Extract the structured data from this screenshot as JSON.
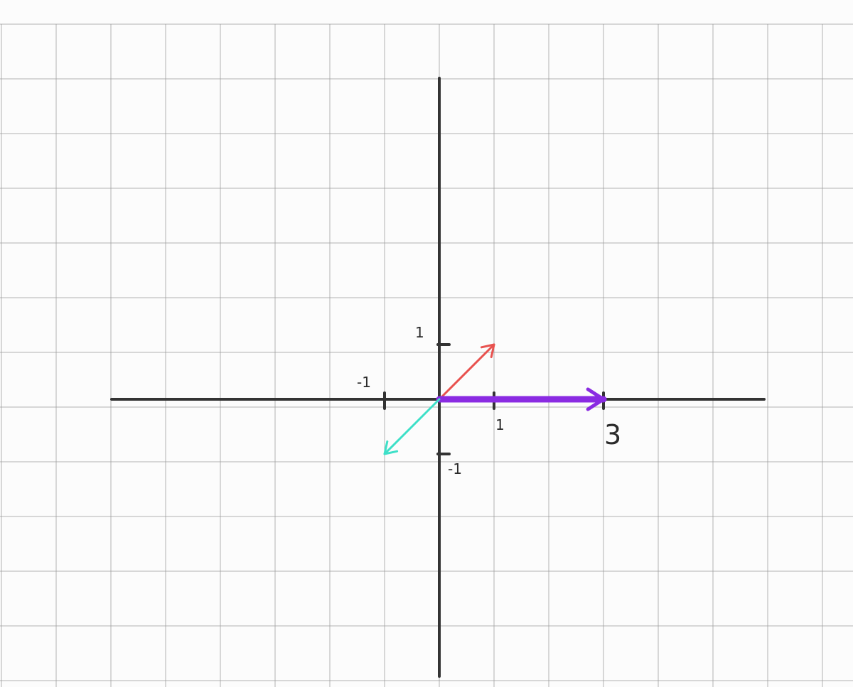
{
  "diagram": {
    "x_range": [
      -6,
      6
    ],
    "y_range": [
      -5,
      6
    ],
    "grid": true,
    "colors": {
      "background": "#fcfcfc",
      "grid": "#9a9a9a",
      "axis": "#333333",
      "vector_red": "#e8524f",
      "vector_purple": "#8a2be2",
      "vector_teal": "#3ee0c8"
    },
    "vectors": [
      {
        "id": "red",
        "from": [
          0,
          0
        ],
        "to": [
          1,
          1
        ],
        "color_key": "vector_red"
      },
      {
        "id": "purple",
        "from": [
          0,
          0
        ],
        "to": [
          3,
          0
        ],
        "color_key": "vector_purple"
      },
      {
        "id": "teal",
        "from": [
          0,
          0
        ],
        "to": [
          -1,
          -1
        ],
        "color_key": "vector_teal"
      }
    ],
    "x_ticks": [
      {
        "value": -1,
        "label": "-1"
      },
      {
        "value": 1,
        "label": "1"
      },
      {
        "value": 3,
        "label": "3"
      }
    ],
    "y_ticks": [
      {
        "value": 1,
        "label": "1"
      },
      {
        "value": -1,
        "label": "-1"
      }
    ]
  }
}
